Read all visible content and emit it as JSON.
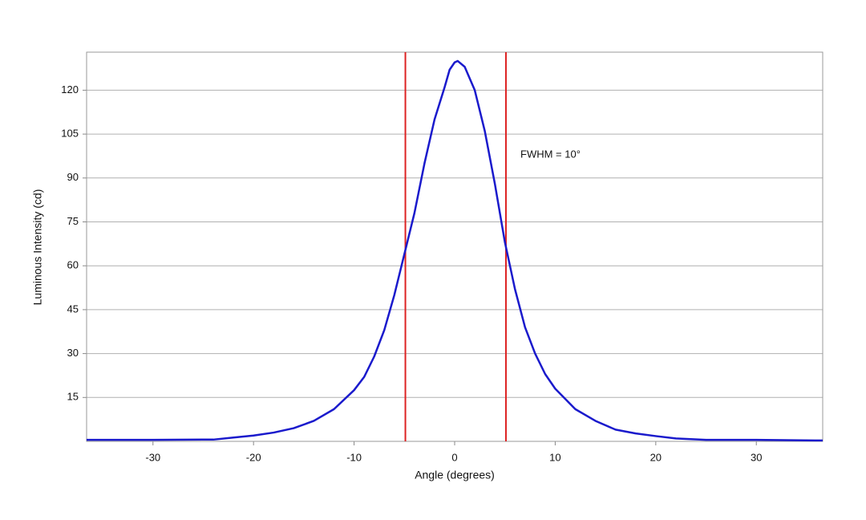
{
  "chart_data": {
    "type": "line",
    "xlabel": "Angle (degrees)",
    "ylabel": "Luminous Intensity (cd)",
    "annotation": "FWHM = 10°",
    "x": [
      -36.6,
      -30,
      -25,
      -24,
      -22,
      -20,
      -18,
      -16,
      -14,
      -12,
      -10,
      -9,
      -8,
      -7,
      -6,
      -5,
      -4,
      -3,
      -2,
      -1,
      -0.5,
      0,
      0.3,
      1,
      2,
      3,
      4,
      5,
      6,
      7,
      8,
      9,
      10,
      12,
      14,
      16,
      18,
      20,
      22,
      25,
      30,
      36.6
    ],
    "series": [
      {
        "color": "#1a1acc",
        "values": [
          0.5,
          0.5,
          0.6,
          0.6,
          1.3,
          2,
          3,
          4.5,
          7,
          11,
          17.5,
          22,
          29,
          38,
          50,
          64,
          78,
          95,
          110,
          121,
          127,
          129.5,
          130,
          128,
          120,
          106,
          88,
          68,
          52,
          39,
          30,
          23,
          18,
          11,
          7,
          4,
          2.7,
          1.8,
          1,
          0.5,
          0.5,
          0.3
        ]
      }
    ],
    "vlines": [
      -4.9,
      5.1
    ],
    "vline_color": "#dd2222",
    "xlim": [
      -36.6,
      36.6
    ],
    "ylim": [
      0,
      133
    ],
    "xticks": [
      -30,
      -20,
      -10,
      0,
      10,
      20,
      30
    ],
    "yticks": [
      15,
      30,
      45,
      60,
      75,
      90,
      105,
      120
    ],
    "grid": true
  }
}
